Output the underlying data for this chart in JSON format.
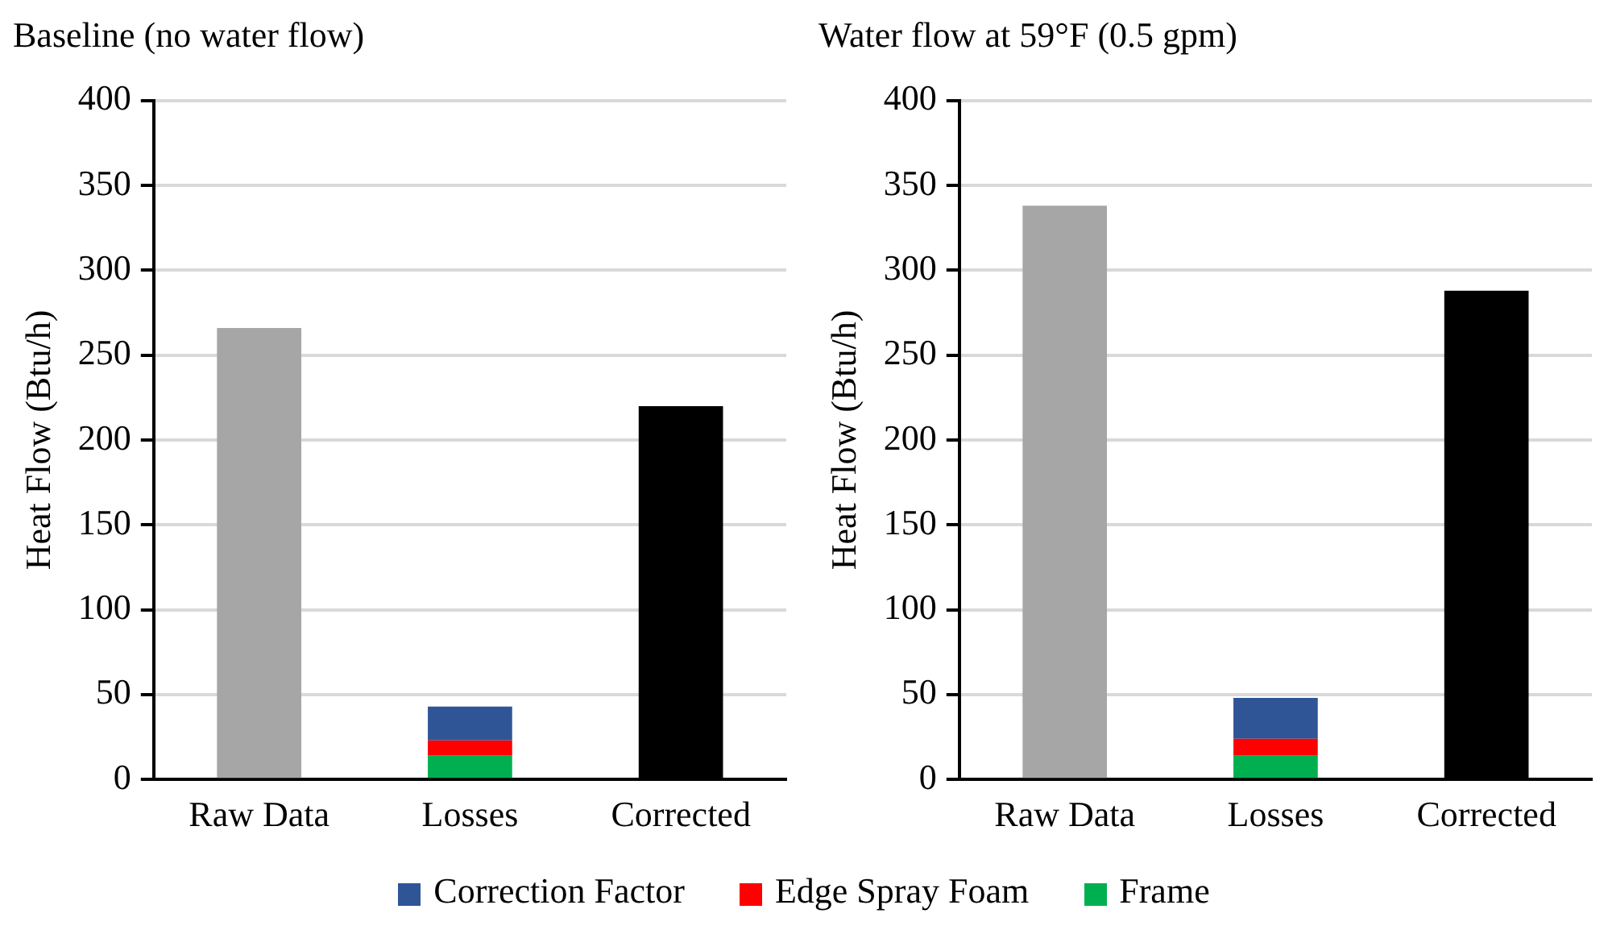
{
  "chart_data": [
    {
      "type": "bar",
      "title": "Baseline (no water flow)",
      "ylabel": "Heat Flow (Btu/h)",
      "categories": [
        "Raw Data",
        "Losses",
        "Corrected"
      ],
      "stacked": true,
      "ylim": [
        0,
        400
      ],
      "yticks": [
        0,
        50,
        100,
        150,
        200,
        250,
        300,
        350,
        400
      ],
      "grid": "y",
      "legend": "bottom",
      "series": [
        {
          "color": "#a6a6a6",
          "values": [
            266,
            null,
            null
          ]
        },
        {
          "name": "Frame",
          "color": "#00b050",
          "values": [
            null,
            14,
            null
          ]
        },
        {
          "name": "Edge Spray Foam",
          "color": "#ff0000",
          "values": [
            null,
            9,
            null
          ]
        },
        {
          "name": "Correction Factor",
          "color": "#2f5597",
          "values": [
            null,
            20,
            null
          ]
        },
        {
          "color": "#000000",
          "values": [
            null,
            null,
            220
          ]
        }
      ]
    },
    {
      "type": "bar",
      "title": "Water flow at 59°F (0.5 gpm)",
      "ylabel": "Heat Flow (Btu/h)",
      "categories": [
        "Raw Data",
        "Losses",
        "Corrected"
      ],
      "stacked": true,
      "ylim": [
        0,
        400
      ],
      "yticks": [
        0,
        50,
        100,
        150,
        200,
        250,
        300,
        350,
        400
      ],
      "grid": "y",
      "series": [
        {
          "color": "#a6a6a6",
          "values": [
            338,
            null,
            null
          ]
        },
        {
          "color": "#00b050",
          "values": [
            null,
            14,
            null
          ]
        },
        {
          "color": "#ff0000",
          "values": [
            null,
            10,
            null
          ]
        },
        {
          "color": "#2f5597",
          "values": [
            null,
            24,
            null
          ]
        },
        {
          "color": "#000000",
          "values": [
            null,
            null,
            288
          ]
        }
      ]
    }
  ]
}
